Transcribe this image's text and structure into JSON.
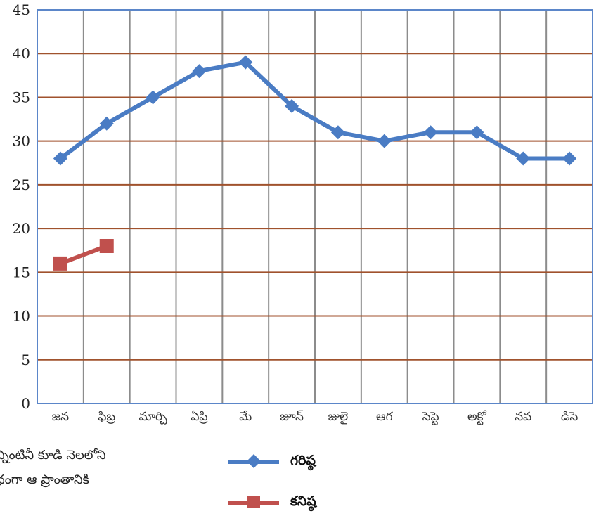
{
  "chart_data": {
    "type": "line",
    "title": "",
    "xlabel": "",
    "ylabel": "",
    "ylim": [
      0,
      45
    ],
    "yticks": [
      0,
      5,
      10,
      15,
      20,
      25,
      30,
      35,
      40,
      45
    ],
    "categories": [
      "జన",
      "ఫిబ్ర",
      "మార్చి",
      "ఏప్రి",
      "మే",
      "జూన్",
      "జులై",
      "ఆగ",
      "సెప్టె",
      "అక్టో",
      "నవ",
      "డిసె"
    ],
    "grid": true,
    "legend_position": "bottom",
    "series": [
      {
        "name": "గరిష్ఠ",
        "color": "#4a7cc4",
        "marker": "diamond",
        "values": [
          28,
          32,
          35,
          38,
          39,
          34,
          31,
          30,
          31,
          31,
          28,
          28
        ]
      },
      {
        "name": "కనిష్ఠ",
        "color": "#c0504d",
        "marker": "square",
        "values": [
          16,
          18,
          null,
          null,
          null,
          null,
          null,
          null,
          null,
          null,
          null,
          null
        ]
      }
    ]
  },
  "body_text": {
    "line1": "న్నింటినీ కూడి నెలలోని",
    "line2": "ధంగా ఆ ప్రాంతానికి"
  }
}
